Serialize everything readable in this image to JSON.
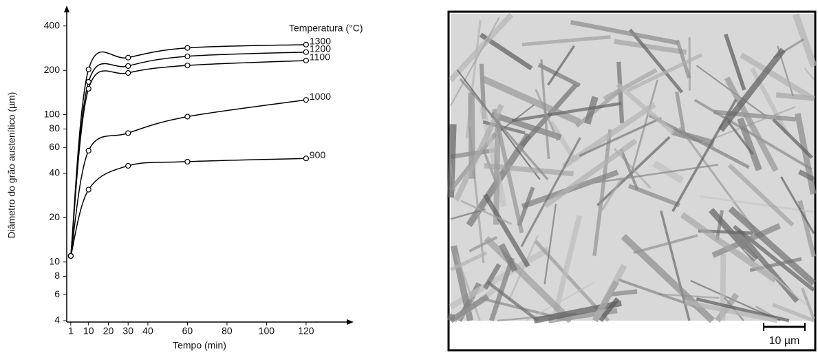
{
  "chart_data": {
    "type": "line",
    "y_label": "Diâmetro do grão austenítico (µm)",
    "x_label": "Tempo (min)",
    "legend_title": "Temperatura (°C)",
    "x": [
      1,
      10,
      30,
      60,
      120
    ],
    "xlim": [
      0,
      135
    ],
    "xticks": [
      1,
      10,
      20,
      30,
      40,
      60,
      80,
      100,
      120
    ],
    "ylim": [
      4,
      500
    ],
    "yticks": [
      4,
      6,
      8,
      10,
      20,
      40,
      60,
      80,
      100,
      200,
      400
    ],
    "log_y": true,
    "series": [
      {
        "name": "1300",
        "color": "#000000",
        "values": [
          11,
          203,
          244,
          284,
          299
        ]
      },
      {
        "name": "1200",
        "color": "#000000",
        "values": [
          11,
          167,
          214,
          249,
          266
        ]
      },
      {
        "name": "1100",
        "color": "#000000",
        "values": [
          11,
          150,
          192,
          216,
          233
        ]
      },
      {
        "name": "1000",
        "color": "#000000",
        "values": [
          11,
          57,
          75,
          97,
          126
        ]
      },
      {
        "name": "900",
        "color": "#000000",
        "values": [
          11,
          31,
          45,
          48,
          50.5
        ]
      }
    ]
  },
  "micrograph": {
    "scale_label": "10 µm"
  }
}
